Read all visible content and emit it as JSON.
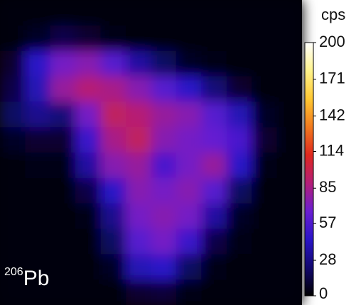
{
  "chart_data": {
    "type": "heatmap",
    "label_mass": "206",
    "label_element": "Pb",
    "colorbar_label": "cps",
    "zlim": [
      0,
      200
    ],
    "zticks": [
      0,
      28,
      57,
      85,
      114,
      142,
      171,
      200
    ],
    "colormap": [
      "#000000",
      "#12086e",
      "#2a14c8",
      "#6a1ed2",
      "#b41e78",
      "#e0281e",
      "#f27a1e",
      "#ffc832",
      "#fff48c",
      "#ffffff"
    ],
    "z": [
      [
        2,
        2,
        3,
        3,
        2,
        2,
        2,
        2,
        2,
        2,
        2,
        2
      ],
      [
        3,
        8,
        15,
        10,
        5,
        3,
        2,
        2,
        2,
        2,
        2,
        2
      ],
      [
        10,
        45,
        70,
        75,
        60,
        35,
        20,
        8,
        4,
        3,
        2,
        2
      ],
      [
        15,
        40,
        80,
        90,
        85,
        75,
        60,
        45,
        25,
        10,
        3,
        2
      ],
      [
        20,
        30,
        25,
        70,
        95,
        90,
        80,
        75,
        60,
        40,
        8,
        2
      ],
      [
        8,
        10,
        10,
        50,
        85,
        95,
        75,
        70,
        65,
        55,
        10,
        2
      ],
      [
        3,
        4,
        5,
        35,
        75,
        80,
        55,
        70,
        80,
        45,
        5,
        2
      ],
      [
        2,
        3,
        3,
        15,
        45,
        75,
        70,
        75,
        60,
        20,
        3,
        2
      ],
      [
        2,
        2,
        3,
        5,
        30,
        70,
        75,
        70,
        35,
        8,
        2,
        2
      ],
      [
        2,
        2,
        2,
        3,
        20,
        60,
        70,
        50,
        15,
        4,
        2,
        2
      ],
      [
        2,
        2,
        2,
        2,
        8,
        40,
        45,
        20,
        5,
        2,
        2,
        2
      ],
      [
        2,
        2,
        2,
        2,
        3,
        10,
        12,
        5,
        3,
        2,
        2,
        2
      ]
    ]
  }
}
